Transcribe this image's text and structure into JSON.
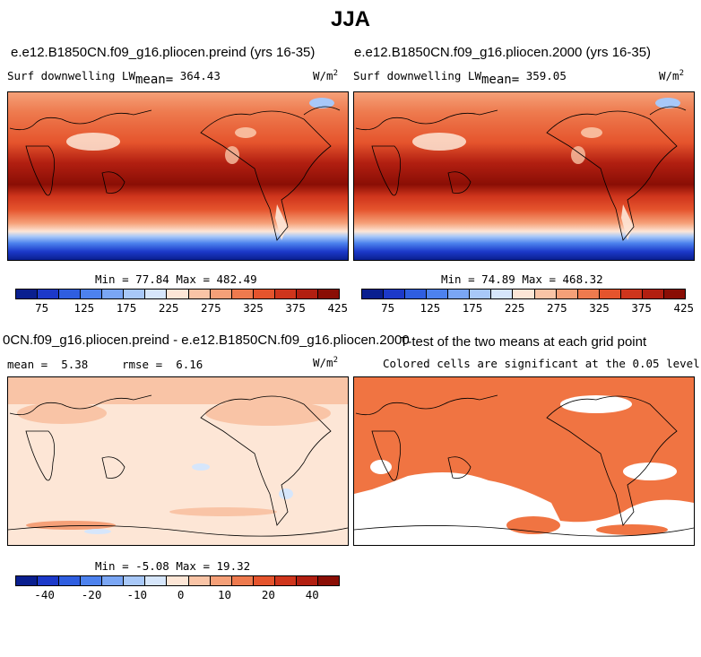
{
  "figure": {
    "title": "JJA"
  },
  "chart_data": [
    {
      "type": "heatmap",
      "title": "e.e12.B1850CN.f09_g16.pliocen.preind (yrs 16-35)",
      "variable": "Surf downwelling LW",
      "mean_label": "mean=",
      "mean": "364.43",
      "units": "W/m",
      "units_exp": "2",
      "min_label": "Min =",
      "min": "77.84",
      "max_label": "Max =",
      "max": "482.49",
      "colorbar_ticks": [
        "75",
        "125",
        "175",
        "225",
        "275",
        "325",
        "375",
        "425"
      ]
    },
    {
      "type": "heatmap",
      "title": "e.e12.B1850CN.f09_g16.pliocen.2000 (yrs 16-35)",
      "variable": "Surf downwelling LW",
      "mean_label": "mean=",
      "mean": "359.05",
      "units": "W/m",
      "units_exp": "2",
      "min_label": "Min =",
      "min": "74.89",
      "max_label": "Max =",
      "max": "468.32",
      "colorbar_ticks": [
        "75",
        "125",
        "175",
        "225",
        "275",
        "325",
        "375",
        "425"
      ]
    },
    {
      "type": "heatmap",
      "title": "0CN.f09_g16.pliocen.preind - e.e12.B1850CN.f09_g16.pliocen.2000",
      "mean_label": "mean =",
      "mean": "5.38",
      "rmse_label": "rmse =",
      "rmse": "6.16",
      "units": "W/m",
      "units_exp": "2",
      "min_label": "Min =",
      "min": "-5.08",
      "max_label": "Max =",
      "max": "19.32",
      "colorbar_ticks": [
        "-40",
        "-20",
        "-10",
        "0",
        "10",
        "20",
        "40"
      ]
    },
    {
      "type": "heatmap",
      "title": "T-test of the two means at each grid point",
      "note": "Colored cells are significant at the 0.05 level"
    }
  ],
  "colors": {
    "abs_scale": [
      "#0a1f8f",
      "#1c39c9",
      "#2f5ee0",
      "#4d82ee",
      "#7aa6f4",
      "#a8c8f8",
      "#d6e6fb",
      "#fde6d6",
      "#f9c4a6",
      "#f5a078",
      "#ee7a4e",
      "#e5542d",
      "#cf351c",
      "#b21f11",
      "#8a0e05"
    ],
    "diff_scale": [
      "#0a1f8f",
      "#1c39c9",
      "#2f5ee0",
      "#4d82ee",
      "#7aa6f4",
      "#a8c8f8",
      "#d6e6fb",
      "#fde6d6",
      "#f9c4a6",
      "#f5a078",
      "#ee7a4e",
      "#e5542d",
      "#cf351c",
      "#b21f11",
      "#8a0e05"
    ],
    "significant": "#f07442"
  }
}
